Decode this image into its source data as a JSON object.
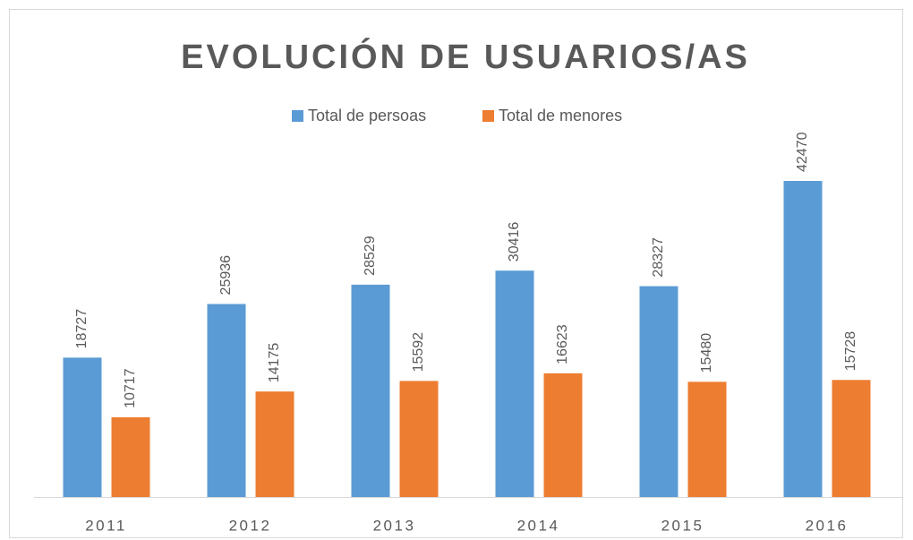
{
  "chart_data": {
    "type": "bar",
    "title": "EVOLUCIÓN DE USUARIOS/AS",
    "categories": [
      "2011",
      "2012",
      "2013",
      "2014",
      "2015",
      "2016"
    ],
    "series": [
      {
        "name": "Total de persoas",
        "color": "#5b9bd5",
        "values": [
          18727,
          25936,
          28529,
          30416,
          28327,
          42470
        ]
      },
      {
        "name": "Total de menores",
        "color": "#ed7d31",
        "values": [
          10717,
          14175,
          15592,
          16623,
          15480,
          15728
        ]
      }
    ],
    "ylim": [
      0,
      45000
    ],
    "legend": "top"
  }
}
